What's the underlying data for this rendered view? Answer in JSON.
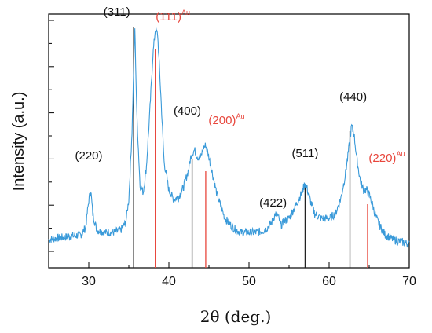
{
  "chart_data": {
    "type": "line",
    "title": "",
    "xlabel": "2θ (deg.)",
    "ylabel": "Intensity (a.u.)",
    "xlim": [
      25,
      70
    ],
    "ylim": [
      0,
      1
    ],
    "xticks": [
      "30",
      "40",
      "50",
      "60",
      "70"
    ],
    "yticks_labeled": false,
    "grid": false,
    "colors": {
      "line": "#3a9ad9",
      "ref_black": "#222222",
      "ref_red": "#e8463c",
      "axis": "#000000"
    },
    "series": [
      {
        "color": "#3a9ad9",
        "x": [
          25.0,
          26.0,
          27.0,
          28.0,
          29.0,
          29.6,
          30.0,
          30.25,
          30.5,
          31.0,
          32.0,
          33.0,
          34.0,
          34.6,
          35.0,
          35.4,
          35.75,
          36.0,
          36.4,
          36.8,
          37.2,
          37.6,
          38.0,
          38.3,
          38.6,
          39.0,
          39.4,
          40.0,
          40.6,
          41.2,
          41.8,
          42.4,
          42.8,
          43.2,
          43.6,
          44.0,
          44.3,
          44.6,
          45.0,
          45.5,
          46.0,
          47.0,
          48.0,
          49.0,
          50.0,
          51.0,
          52.0,
          52.8,
          53.3,
          53.6,
          54.0,
          54.5,
          55.0,
          55.6,
          56.2,
          56.6,
          57.0,
          57.3,
          57.7,
          58.2,
          59.0,
          60.0,
          60.8,
          61.5,
          62.0,
          62.4,
          62.8,
          63.1,
          63.5,
          63.9,
          64.3,
          64.7,
          65.0,
          65.4,
          65.8,
          66.3,
          67.0,
          68.0,
          69.0,
          70.0
        ],
        "y": [
          0.09,
          0.095,
          0.1,
          0.105,
          0.11,
          0.14,
          0.255,
          0.3,
          0.2,
          0.13,
          0.12,
          0.12,
          0.13,
          0.16,
          0.26,
          0.55,
          0.99,
          0.62,
          0.32,
          0.29,
          0.4,
          0.62,
          0.87,
          0.98,
          0.96,
          0.7,
          0.42,
          0.3,
          0.26,
          0.27,
          0.31,
          0.38,
          0.45,
          0.47,
          0.44,
          0.44,
          0.48,
          0.49,
          0.44,
          0.36,
          0.28,
          0.18,
          0.14,
          0.12,
          0.12,
          0.12,
          0.13,
          0.16,
          0.2,
          0.19,
          0.15,
          0.17,
          0.18,
          0.22,
          0.26,
          0.29,
          0.33,
          0.3,
          0.25,
          0.2,
          0.18,
          0.18,
          0.2,
          0.27,
          0.36,
          0.46,
          0.57,
          0.54,
          0.42,
          0.34,
          0.3,
          0.3,
          0.28,
          0.24,
          0.19,
          0.15,
          0.11,
          0.09,
          0.08,
          0.07
        ]
      }
    ],
    "reference_lines": [
      {
        "x": 35.6,
        "height": 0.99,
        "color": "#222222"
      },
      {
        "x": 38.3,
        "height": 0.9,
        "color": "#e8463c"
      },
      {
        "x": 42.9,
        "height": 0.43,
        "color": "#222222"
      },
      {
        "x": 44.6,
        "height": 0.38,
        "color": "#e8463c"
      },
      {
        "x": 57.0,
        "height": 0.32,
        "color": "#222222"
      },
      {
        "x": 62.6,
        "height": 0.55,
        "color": "#222222"
      },
      {
        "x": 64.8,
        "height": 0.24,
        "color": "#e8463c"
      }
    ],
    "annotations": [
      {
        "text": "(220)",
        "x": 30.0,
        "y": 0.43,
        "color": "#111111",
        "sup": ""
      },
      {
        "text": "(311)",
        "x": 33.5,
        "y": 1.04,
        "color": "#111111",
        "sup": ""
      },
      {
        "text": "(111)",
        "x": 40.5,
        "y": 1.02,
        "color": "#e8463c",
        "sup": "Au"
      },
      {
        "text": "(400)",
        "x": 42.3,
        "y": 0.62,
        "color": "#111111",
        "sup": ""
      },
      {
        "text": "(200)",
        "x": 47.2,
        "y": 0.58,
        "color": "#e8463c",
        "sup": "Au"
      },
      {
        "text": "(422)",
        "x": 53.0,
        "y": 0.23,
        "color": "#111111",
        "sup": ""
      },
      {
        "text": "(511)",
        "x": 57.0,
        "y": 0.44,
        "color": "#111111",
        "sup": ""
      },
      {
        "text": "(440)",
        "x": 63.0,
        "y": 0.68,
        "color": "#111111",
        "sup": ""
      },
      {
        "text": "(220)",
        "x": 67.2,
        "y": 0.42,
        "color": "#e8463c",
        "sup": "Au"
      }
    ]
  }
}
